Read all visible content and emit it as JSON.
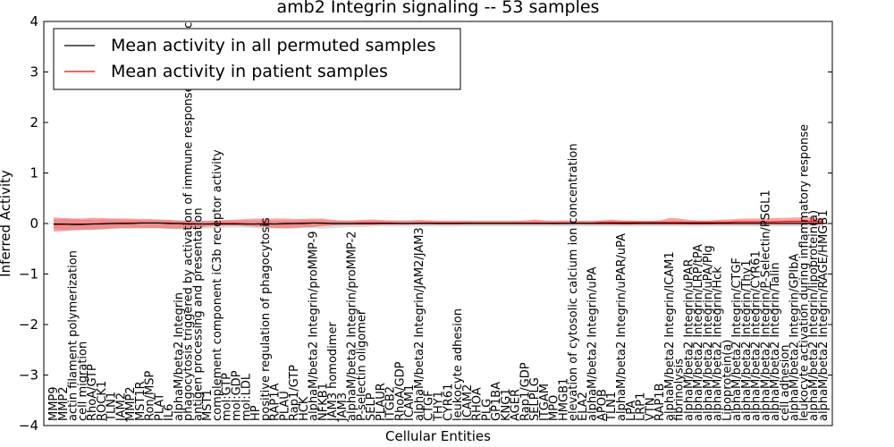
{
  "chart_data": {
    "type": "line",
    "title": "amb2 Integrin signaling -- 53 samples",
    "xlabel": "Cellular Entities",
    "ylabel": "Inferred Activity",
    "ylim": [
      -4,
      4
    ],
    "yticks": [
      -4,
      -3,
      -2,
      -1,
      0,
      1,
      2,
      3,
      4
    ],
    "grid": false,
    "legend": {
      "placement": "top-left",
      "entries": [
        {
          "name": "Mean activity in all permuted samples",
          "color": "#000000"
        },
        {
          "name": "Mean activity in patient samples",
          "color": "#ff0000"
        }
      ]
    },
    "categories": [
      "MMP9",
      "MMP2",
      "actin filament polymerization",
      "cell migration",
      "RhoA/GTP",
      "ROCK1",
      "TLN1",
      "JAM2",
      "MMP2",
      "MST1R",
      "Ron/MSP",
      "PLAT",
      "IL6",
      "alphaM/beta2 Integrin",
      "phagocytosis triggered by activation of immune response cell surface activating receptor",
      "antigen processing and presentation",
      "MST1",
      "complement component iC3b receptor activity",
      "mol:GTP",
      "mol:GDP",
      "mol:LDL",
      "HP",
      "positive regulation of phagocytosis",
      "RAP1A",
      "PLAU",
      "Rap1/GTP",
      "HCK",
      "alphaM/beta2 Integrin/proMMP-9",
      "NFKB1",
      "JAM3 homodimer",
      "JAM3",
      "alphaM/beta2 Integrin/proMMP-2",
      "P-selectin oligomer",
      "SELP",
      "PLAUR",
      "ITGB2",
      "RhoA/GDP",
      "ICAM1",
      "alphaM/beta2 Integrin/JAM2/JAM3",
      "CTGF",
      "THY1",
      "CYR61",
      "leukocyte adhesion",
      "ICAM2",
      "RHOA",
      "PLG",
      "GP1BA",
      "KNG1",
      "AGER",
      "Rap1/GDP",
      "SELPLG",
      "ITGAM",
      "MPO",
      "HMGB1",
      "elevation of cytosolic calcium ion concentration",
      "ELA2",
      "alphaM/beta2 Integrin/uPA",
      "APOB",
      "TLN1",
      "alphaM/beta2 Integrin/uPAR/uPA",
      "LPA",
      "LRP1",
      "VTN",
      "RAP1B",
      "alphaM/beta2 Integrin/ICAM1",
      "fibrinolysis",
      "alphaM/beta2 Integrin/uPAR",
      "alphaM/beta2 Integrin/LRP/tPA",
      "alphaM/beta2 Integrin/uPA/Plg",
      "alphaM/beta2 Integrin/Hck",
      "Lipoprotein(a)",
      "alphaM/beta2 Integrin/CTGF",
      "alphaM/beta2 Integrin/Thy1",
      "alphaM/beta2 Integrin/CYR61",
      "alphaM/beta2 Integrin/P-Selectin/PSGL1",
      "alphaM/beta2 Integrin/Talin",
      "cell adhesion",
      "alphaM/beta2 Integrin/GPIbA",
      "leukocyte activation during inflammatory response",
      "alphaM/beta2 Integrin/lipoprotein(a)",
      "alphaM/beta2 Integrin/RAGE/HMGB1"
    ],
    "series": [
      {
        "name": "Mean activity in all permuted samples",
        "color": "#000000",
        "values": [
          -0.01,
          -0.01,
          -0.02,
          -0.02,
          -0.01,
          -0.01,
          0.0,
          0.0,
          0.0,
          0.01,
          0.01,
          0.01,
          0.0,
          0.0,
          -0.01,
          -0.01,
          -0.01,
          -0.01,
          -0.01,
          -0.01,
          -0.01,
          -0.01,
          -0.01,
          -0.01,
          0.0,
          0.0,
          0.0,
          0.01,
          0.01,
          0.0,
          0.0,
          0.0,
          0.0,
          0.0,
          0.0,
          0.0,
          0.0,
          0.0,
          0.0,
          0.0,
          0.0,
          0.0,
          0.0,
          0.0,
          0.0,
          0.0,
          0.0,
          0.0,
          0.0,
          0.0,
          0.0,
          0.0,
          0.0,
          0.0,
          0.0,
          0.0,
          0.0,
          0.0,
          0.0,
          0.0,
          0.0,
          0.0,
          0.0,
          0.0,
          0.0,
          0.0,
          0.0,
          0.0,
          0.0,
          0.0,
          0.0,
          0.0,
          0.0,
          0.0,
          0.0,
          0.0,
          0.0,
          0.0,
          0.0,
          0.0,
          0.0
        ],
        "band_low": [
          -0.12,
          -0.13,
          -0.14,
          -0.14,
          -0.13,
          -0.12,
          -0.11,
          -0.1,
          -0.1,
          -0.1,
          -0.1,
          -0.1,
          -0.11,
          -0.12,
          -0.12,
          -0.11,
          -0.1,
          -0.09,
          -0.08,
          -0.08,
          -0.08,
          -0.09,
          -0.1,
          -0.1,
          -0.09,
          -0.08,
          -0.08,
          -0.09,
          -0.1,
          -0.09,
          -0.08,
          -0.07,
          -0.07,
          -0.06,
          -0.06,
          -0.06,
          -0.06,
          -0.06,
          -0.06,
          -0.06,
          -0.06,
          -0.06,
          -0.06,
          -0.06,
          -0.06,
          -0.06,
          -0.06,
          -0.06,
          -0.06,
          -0.06,
          -0.06,
          -0.06,
          -0.06,
          -0.06,
          -0.06,
          -0.06,
          -0.06,
          -0.06,
          -0.06,
          -0.06,
          -0.06,
          -0.06,
          -0.06,
          -0.06,
          -0.06,
          -0.06,
          -0.06,
          -0.06,
          -0.06,
          -0.06,
          -0.06,
          -0.06,
          -0.06,
          -0.06,
          -0.06,
          -0.06,
          -0.06,
          -0.06,
          -0.06,
          -0.06,
          -0.06
        ],
        "band_high": [
          0.08,
          0.09,
          0.09,
          0.08,
          0.08,
          0.08,
          0.08,
          0.08,
          0.07,
          0.07,
          0.07,
          0.07,
          0.07,
          0.06,
          0.06,
          0.06,
          0.06,
          0.06,
          0.06,
          0.06,
          0.06,
          0.06,
          0.06,
          0.06,
          0.06,
          0.06,
          0.07,
          0.07,
          0.07,
          0.06,
          0.06,
          0.06,
          0.06,
          0.06,
          0.06,
          0.06,
          0.06,
          0.06,
          0.06,
          0.06,
          0.06,
          0.06,
          0.06,
          0.06,
          0.06,
          0.06,
          0.06,
          0.06,
          0.06,
          0.06,
          0.06,
          0.06,
          0.06,
          0.06,
          0.06,
          0.06,
          0.06,
          0.06,
          0.06,
          0.06,
          0.06,
          0.06,
          0.06,
          0.06,
          0.06,
          0.06,
          0.06,
          0.06,
          0.06,
          0.06,
          0.06,
          0.06,
          0.06,
          0.06,
          0.06,
          0.06,
          0.06,
          0.06,
          0.06,
          0.06,
          0.06
        ]
      },
      {
        "name": "Mean activity in patient samples",
        "color": "#ff0000",
        "values": [
          -0.02,
          -0.02,
          -0.01,
          -0.01,
          -0.01,
          0.0,
          0.0,
          0.01,
          0.01,
          0.01,
          0.01,
          0.01,
          0.01,
          0.0,
          0.0,
          -0.01,
          -0.01,
          0.0,
          0.0,
          0.0,
          -0.01,
          -0.01,
          0.0,
          -0.01,
          -0.01,
          0.0,
          0.01,
          0.01,
          0.0,
          0.0,
          0.0,
          0.0,
          0.01,
          0.01,
          0.01,
          0.01,
          0.0,
          0.0,
          0.01,
          0.01,
          0.01,
          0.01,
          0.01,
          0.01,
          0.01,
          0.01,
          0.01,
          0.01,
          0.01,
          0.01,
          0.01,
          0.01,
          0.01,
          0.01,
          0.01,
          0.01,
          0.01,
          0.02,
          0.02,
          0.02,
          0.02,
          0.02,
          0.02,
          0.02,
          0.02,
          0.02,
          0.02,
          0.02,
          0.02,
          0.02,
          0.02,
          0.03,
          0.03,
          0.03,
          0.03,
          0.03,
          0.04,
          0.04,
          0.04,
          0.04,
          0.04
        ],
        "band_low": [
          -0.16,
          -0.15,
          -0.13,
          -0.12,
          -0.12,
          -0.11,
          -0.1,
          -0.09,
          -0.09,
          -0.09,
          -0.09,
          -0.09,
          -0.1,
          -0.1,
          -0.09,
          -0.08,
          -0.06,
          -0.05,
          -0.04,
          -0.04,
          -0.05,
          -0.06,
          -0.07,
          -0.09,
          -0.1,
          -0.1,
          -0.08,
          -0.07,
          -0.05,
          -0.04,
          -0.03,
          -0.03,
          -0.03,
          -0.03,
          -0.02,
          -0.02,
          -0.02,
          -0.02,
          -0.01,
          -0.01,
          -0.02,
          -0.02,
          -0.02,
          -0.01,
          -0.01,
          -0.01,
          -0.01,
          -0.01,
          -0.01,
          -0.01,
          -0.01,
          -0.01,
          -0.02,
          -0.01,
          -0.01,
          -0.01,
          -0.01,
          -0.01,
          -0.01,
          -0.02,
          -0.02,
          -0.01,
          -0.01,
          -0.01,
          -0.01,
          -0.01,
          -0.02,
          -0.02,
          -0.02,
          -0.01,
          -0.01,
          -0.01,
          -0.01,
          -0.01,
          -0.01,
          -0.01,
          -0.01,
          -0.01,
          -0.01,
          -0.01,
          -0.01
        ],
        "band_high": [
          0.12,
          0.11,
          0.1,
          0.1,
          0.11,
          0.11,
          0.1,
          0.1,
          0.1,
          0.09,
          0.09,
          0.08,
          0.07,
          0.06,
          0.05,
          0.05,
          0.05,
          0.06,
          0.07,
          0.08,
          0.09,
          0.1,
          0.1,
          0.1,
          0.1,
          0.09,
          0.09,
          0.1,
          0.1,
          0.07,
          0.06,
          0.06,
          0.07,
          0.08,
          0.07,
          0.06,
          0.06,
          0.06,
          0.07,
          0.06,
          0.05,
          0.05,
          0.05,
          0.05,
          0.05,
          0.05,
          0.05,
          0.05,
          0.05,
          0.06,
          0.08,
          0.06,
          0.05,
          0.06,
          0.05,
          0.05,
          0.05,
          0.06,
          0.08,
          0.06,
          0.06,
          0.05,
          0.05,
          0.06,
          0.11,
          0.1,
          0.07,
          0.06,
          0.06,
          0.07,
          0.08,
          0.09,
          0.1,
          0.1,
          0.1,
          0.11,
          0.11,
          0.12,
          0.12,
          0.12,
          0.11
        ]
      }
    ]
  }
}
